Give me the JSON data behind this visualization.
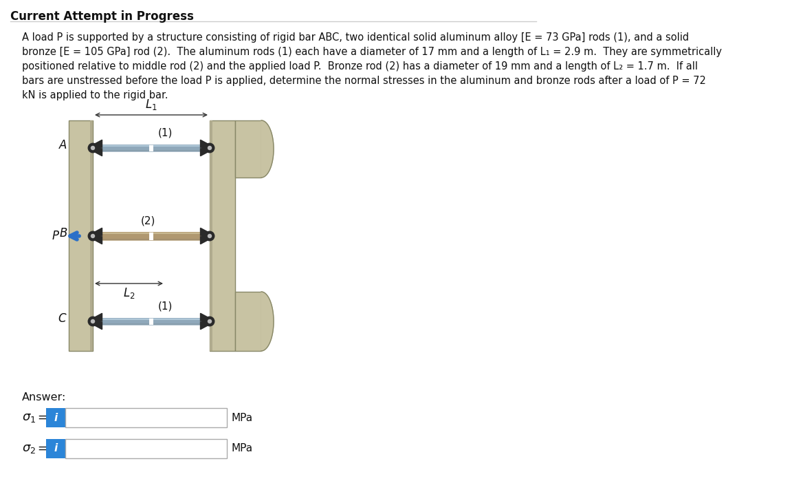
{
  "title": "Current Attempt in Progress",
  "bg_color": "#ffffff",
  "problem_lines": [
    "A load P is supported by a structure consisting of rigid bar ABC, two identical solid aluminum alloy [E = 73 GPa] rods (1), and a solid",
    "bronze [E = 105 GPa] rod (2).  The aluminum rods (1) each have a diameter of 17 mm and a length of L₁ = 2.9 m.  They are symmetrically",
    "positioned relative to middle rod (2) and the applied load P.  Bronze rod (2) has a diameter of 19 mm and a length of L₂ = 1.7 m.  If all",
    "bars are unstressed before the load P is applied, determine the normal stresses in the aluminum and bronze rods after a load of P = 72",
    "kN is applied to the rigid bar."
  ],
  "bar_color": "#c8c3a3",
  "rod1_color": "#8fa8ba",
  "rod2_color": "#b09870",
  "wall_color": "#c8c3a3",
  "wall_shadow": "#b0ab8e",
  "pin_dark": "#2a2a2a",
  "pin_light": "#cccccc",
  "arrow_color": "#2b70c8",
  "dim_color": "#333333",
  "text_color": "#111111",
  "blue_btn": "#2b85d8",
  "input_border": "#aaaaaa"
}
